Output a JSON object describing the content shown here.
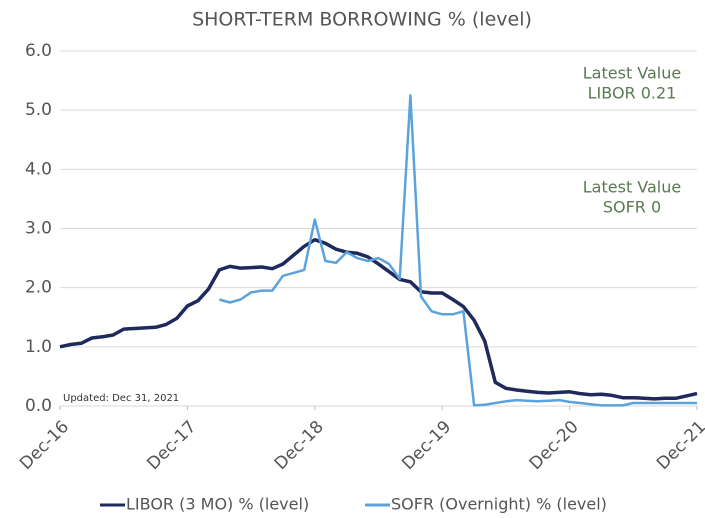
{
  "chart_data": {
    "type": "line",
    "title": "SHORT-TERM BORROWING % (level)",
    "annotations": [
      {
        "lines": [
          "Latest Value",
          "LIBOR 0.21"
        ]
      },
      {
        "lines": [
          "Latest Value",
          "SOFR 0"
        ]
      }
    ],
    "note": "Updated: Dec 31, 2021",
    "x": [
      "2016-12",
      "2017-01",
      "2017-02",
      "2017-03",
      "2017-04",
      "2017-05",
      "2017-06",
      "2017-07",
      "2017-08",
      "2017-09",
      "2017-10",
      "2017-11",
      "2017-12",
      "2018-01",
      "2018-02",
      "2018-03",
      "2018-04",
      "2018-05",
      "2018-06",
      "2018-07",
      "2018-08",
      "2018-09",
      "2018-10",
      "2018-11",
      "2018-12",
      "2019-01",
      "2019-02",
      "2019-03",
      "2019-04",
      "2019-05",
      "2019-06",
      "2019-07",
      "2019-08",
      "2019-09",
      "2019-10",
      "2019-11",
      "2019-12",
      "2020-01",
      "2020-02",
      "2020-03",
      "2020-04",
      "2020-05",
      "2020-06",
      "2020-07",
      "2020-08",
      "2020-09",
      "2020-10",
      "2020-11",
      "2020-12",
      "2021-01",
      "2021-02",
      "2021-03",
      "2021-04",
      "2021-05",
      "2021-06",
      "2021-07",
      "2021-08",
      "2021-09",
      "2021-10",
      "2021-11",
      "2021-12"
    ],
    "series": [
      {
        "name": "LIBOR (3 MO) % (level)",
        "color": "#1f2a5c",
        "values": [
          1.0,
          1.04,
          1.06,
          1.15,
          1.17,
          1.2,
          1.3,
          1.31,
          1.32,
          1.33,
          1.38,
          1.48,
          1.69,
          1.78,
          1.98,
          2.3,
          2.36,
          2.33,
          2.34,
          2.35,
          2.32,
          2.4,
          2.55,
          2.7,
          2.81,
          2.75,
          2.65,
          2.6,
          2.58,
          2.52,
          2.4,
          2.27,
          2.14,
          2.1,
          1.93,
          1.91,
          1.91,
          1.8,
          1.68,
          1.45,
          1.1,
          0.4,
          0.3,
          0.27,
          0.25,
          0.23,
          0.22,
          0.23,
          0.24,
          0.21,
          0.19,
          0.2,
          0.18,
          0.14,
          0.14,
          0.13,
          0.12,
          0.13,
          0.13,
          0.17,
          0.21
        ]
      },
      {
        "name": "SOFR (Overnight) % (level)",
        "color": "#5ba3dc",
        "values": [
          null,
          null,
          null,
          null,
          null,
          null,
          null,
          null,
          null,
          null,
          null,
          null,
          null,
          null,
          null,
          1.8,
          1.75,
          1.8,
          1.92,
          1.95,
          1.95,
          2.2,
          2.25,
          2.3,
          3.15,
          2.45,
          2.42,
          2.6,
          2.5,
          2.45,
          2.5,
          2.4,
          2.15,
          5.25,
          1.85,
          1.6,
          1.55,
          1.55,
          1.6,
          0.01,
          0.02,
          0.05,
          0.08,
          0.1,
          0.09,
          0.08,
          0.09,
          0.1,
          0.07,
          0.05,
          0.03,
          0.01,
          0.01,
          0.01,
          0.05,
          0.05,
          0.05,
          0.05,
          0.05,
          0.05,
          0.05
        ]
      }
    ],
    "xlim": [
      "2016-12",
      "2021-12"
    ],
    "xticks": [
      {
        "value": "2016-12",
        "label": "Dec-16"
      },
      {
        "value": "2017-12",
        "label": "Dec-17"
      },
      {
        "value": "2018-12",
        "label": "Dec-18"
      },
      {
        "value": "2019-12",
        "label": "Dec-19"
      },
      {
        "value": "2020-12",
        "label": "Dec-20"
      },
      {
        "value": "2021-12",
        "label": "Dec-21"
      }
    ],
    "ylim": [
      0,
      6
    ],
    "yticks": [
      {
        "value": 0,
        "label": "0.0"
      },
      {
        "value": 1,
        "label": "1.0"
      },
      {
        "value": 2,
        "label": "2.0"
      },
      {
        "value": 3,
        "label": "3.0"
      },
      {
        "value": 4,
        "label": "4.0"
      },
      {
        "value": 5,
        "label": "5.0"
      },
      {
        "value": 6,
        "label": "6.0"
      }
    ],
    "grid": true,
    "legend": "bottom"
  }
}
